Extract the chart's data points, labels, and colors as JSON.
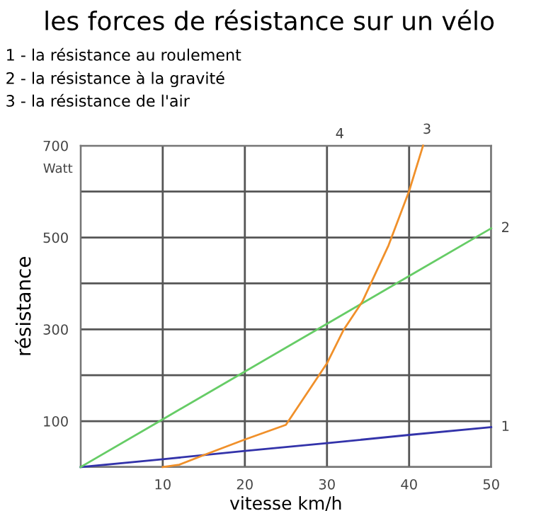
{
  "chart_data": {
    "type": "line",
    "title": "les forces de résistance sur un vélo",
    "annotations": [
      "1 - la résistance au roulement",
      "2 - la résistance à la gravité",
      "3 - la résistance de l'air",
      "4",
      "Watt"
    ],
    "xlabel": "vitesse km/h",
    "ylabel": "résistance",
    "series": [
      {
        "name": "1",
        "color": "#3333aa",
        "x": [
          0,
          10,
          20,
          30,
          40,
          50
        ],
        "values": [
          0,
          17,
          35,
          52,
          70,
          87
        ]
      },
      {
        "name": "2",
        "color": "#66cc66",
        "x": [
          0,
          10,
          20,
          30,
          40,
          50
        ],
        "values": [
          0,
          104,
          208,
          312,
          416,
          520
        ]
      },
      {
        "name": "3",
        "color": "#f0902a",
        "x": [
          10,
          12,
          15,
          20,
          25,
          30,
          32,
          34.3,
          37.5,
          40,
          41.7
        ],
        "values": [
          0,
          5,
          26,
          60,
          92,
          226,
          298,
          360,
          483,
          601,
          700
        ]
      }
    ],
    "xlim": [
      0,
      50
    ],
    "ylim": [
      0,
      700
    ],
    "xticks": [
      {
        "value": 0,
        "label": null
      },
      10,
      20,
      30,
      40,
      50
    ],
    "yticks": [
      {
        "value": 0,
        "label": null
      },
      100,
      {
        "value": 200,
        "label": null
      },
      300,
      {
        "value": 400,
        "label": null
      },
      500,
      {
        "value": 600,
        "label": null
      },
      700
    ],
    "grid": true,
    "legend": false,
    "marker": "none",
    "line_style": "solid"
  }
}
